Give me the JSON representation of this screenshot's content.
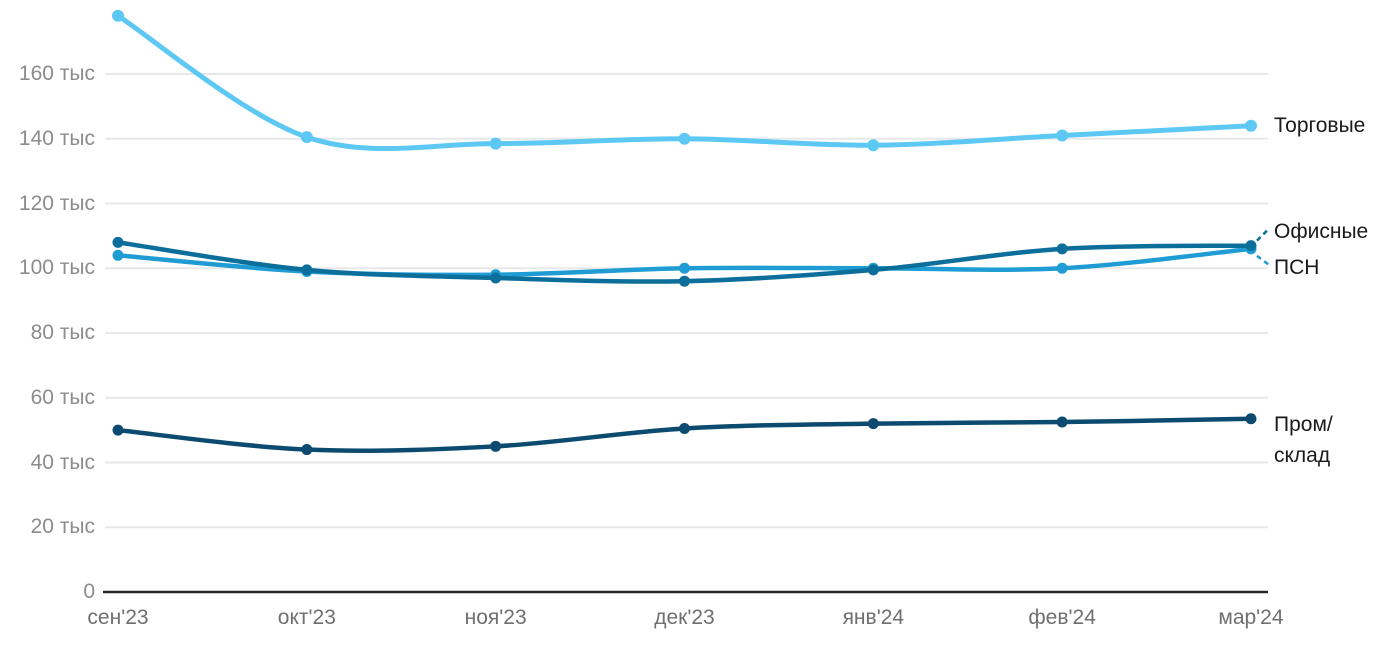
{
  "chart_data": {
    "type": "line",
    "title": "",
    "xlabel": "",
    "ylabel": "",
    "unit": "тыс",
    "categories": [
      "сен'23",
      "окт'23",
      "ноя'23",
      "дек'23",
      "янв'24",
      "фев'24",
      "мар'24"
    ],
    "series": [
      {
        "name": "Торговые",
        "color": "#5ec8f4",
        "values": [
          178,
          140.5,
          138.5,
          140,
          138,
          141,
          144
        ]
      },
      {
        "name": "Офисные",
        "color": "#0b6e9b",
        "values": [
          108,
          99.5,
          97,
          96,
          99.5,
          106,
          107
        ]
      },
      {
        "name": "ПСН",
        "color": "#1f9cd3",
        "values": [
          104,
          99,
          98,
          100,
          100,
          100,
          106
        ]
      },
      {
        "name": "Пром/склад",
        "label_lines": [
          "Пром/",
          "склад"
        ],
        "color": "#0c4a6f",
        "values": [
          50,
          44,
          45,
          50.5,
          52,
          52.5,
          53.5
        ]
      }
    ],
    "yticks": [
      {
        "value": 160,
        "label": "160 тыс"
      },
      {
        "value": 140,
        "label": "140 тыс"
      },
      {
        "value": 120,
        "label": "120 тыс"
      },
      {
        "value": 100,
        "label": "100 тыс"
      },
      {
        "value": 80,
        "label": "80 тыс"
      },
      {
        "value": 60,
        "label": "60 тыс"
      },
      {
        "value": 40,
        "label": "40 тыс"
      },
      {
        "value": 20,
        "label": "20 тыс"
      },
      {
        "value": 0,
        "label": "0"
      }
    ],
    "ylim": [
      0,
      183
    ],
    "grid": true,
    "legend_position": "right-edge-labels"
  },
  "colors": {
    "background": "#ffffff",
    "grid": "#e8e8e8",
    "axis": "#262626",
    "y_tick_text": "#8c8c8c",
    "x_tick_text": "#6f6f6f",
    "series_label_text": "#1a1a1a"
  }
}
